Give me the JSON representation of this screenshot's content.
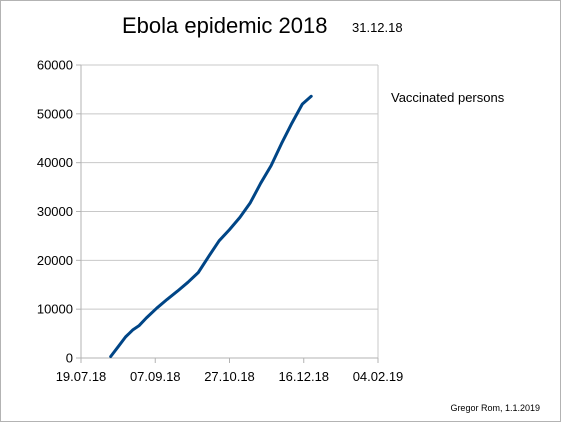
{
  "chart_data": {
    "type": "line",
    "title": "Ebola epidemic 2018",
    "subtitle": "31.12.18",
    "xlabel": "",
    "ylabel": "",
    "x_ticks": [
      "19.07.18",
      "07.09.18",
      "27.10.18",
      "16.12.18",
      "04.02.19"
    ],
    "xlim": [
      "2018-07-19",
      "2019-02-04"
    ],
    "y_ticks": [
      "0",
      "10000",
      "20000",
      "30000",
      "40000",
      "50000",
      "60000"
    ],
    "ylim": [
      0,
      60000
    ],
    "grid": "horizontal",
    "legend_position": "right",
    "series": [
      {
        "name": "Vaccinated persons",
        "color": "#004586",
        "points": [
          {
            "x": "2018-08-08",
            "y": 300
          },
          {
            "x": "2018-08-13",
            "y": 2300
          },
          {
            "x": "2018-08-18",
            "y": 4300
          },
          {
            "x": "2018-08-23",
            "y": 5800
          },
          {
            "x": "2018-08-27",
            "y": 6600
          },
          {
            "x": "2018-09-01",
            "y": 8200
          },
          {
            "x": "2018-09-08",
            "y": 10200
          },
          {
            "x": "2018-09-15",
            "y": 12000
          },
          {
            "x": "2018-09-22",
            "y": 13700
          },
          {
            "x": "2018-09-29",
            "y": 15500
          },
          {
            "x": "2018-10-06",
            "y": 17500
          },
          {
            "x": "2018-10-13",
            "y": 20800
          },
          {
            "x": "2018-10-20",
            "y": 24000
          },
          {
            "x": "2018-10-27",
            "y": 26300
          },
          {
            "x": "2018-11-03",
            "y": 28800
          },
          {
            "x": "2018-11-10",
            "y": 31800
          },
          {
            "x": "2018-11-17",
            "y": 35800
          },
          {
            "x": "2018-11-24",
            "y": 39400
          },
          {
            "x": "2018-12-01",
            "y": 43900
          },
          {
            "x": "2018-12-08",
            "y": 48100
          },
          {
            "x": "2018-12-15",
            "y": 52000
          },
          {
            "x": "2018-12-21",
            "y": 53600
          }
        ]
      }
    ]
  },
  "credit": "Gregor Rom, 1.1.2019"
}
